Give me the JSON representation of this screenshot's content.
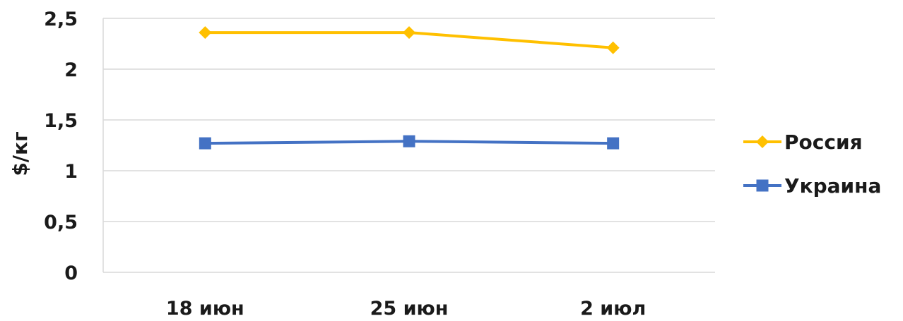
{
  "chart_data": {
    "type": "line",
    "categories": [
      "18 июн",
      "25 июн",
      "2 июл"
    ],
    "series": [
      {
        "name": "Россия",
        "values": [
          2.36,
          2.36,
          2.21
        ],
        "color": "#FFC000",
        "marker": "diamond"
      },
      {
        "name": "Украина",
        "values": [
          1.27,
          1.29,
          1.27
        ],
        "color": "#4472C4",
        "marker": "square"
      }
    ],
    "yticks": [
      "0",
      "0,5",
      "1",
      "1,5",
      "2",
      "2,5"
    ],
    "ylabel": "$/кг",
    "xlabel": "",
    "title": "",
    "ylim": [
      0,
      2.5
    ],
    "grid": true,
    "gridline_color": "#D9D9D9",
    "legend_position": "right"
  }
}
